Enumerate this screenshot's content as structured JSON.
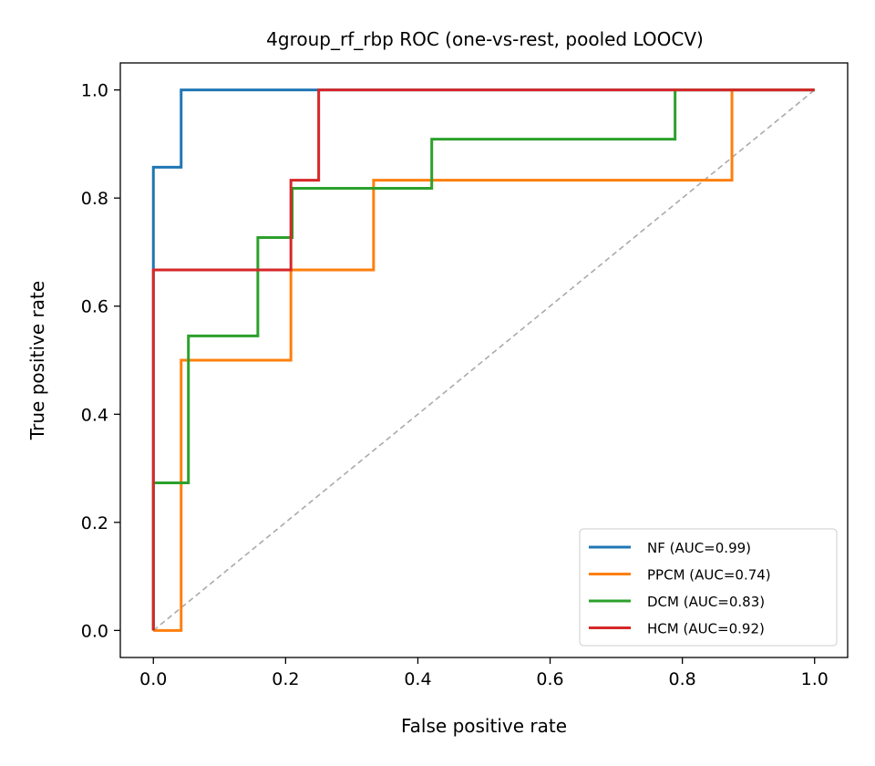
{
  "chart_data": {
    "type": "line",
    "title": "4group_rf_rbp ROC (one-vs-rest, pooled LOOCV)",
    "xlabel": "False positive rate",
    "ylabel": "True positive rate",
    "xlim": [
      -0.05,
      1.05
    ],
    "ylim": [
      -0.05,
      1.05
    ],
    "xticks": [
      0.0,
      0.2,
      0.4,
      0.6,
      0.8,
      1.0
    ],
    "yticks": [
      0.0,
      0.2,
      0.4,
      0.6,
      0.8,
      1.0
    ],
    "xtick_labels": [
      "0.0",
      "0.2",
      "0.4",
      "0.6",
      "0.8",
      "1.0"
    ],
    "ytick_labels": [
      "0.0",
      "0.2",
      "0.4",
      "0.6",
      "0.8",
      "1.0"
    ],
    "grid": false,
    "legend_position": "bottom-right",
    "reference_line": {
      "x": [
        0,
        1
      ],
      "y": [
        0,
        1
      ],
      "color": "#aaaaaa",
      "style": "dashed"
    },
    "series": [
      {
        "name": "NF (AUC=0.99)",
        "color": "#1f77b4",
        "x": [
          0,
          0,
          0,
          0.042,
          0.042,
          1.0
        ],
        "y": [
          0,
          0.667,
          0.857,
          0.857,
          1.0,
          1.0
        ]
      },
      {
        "name": "PPCM (AUC=0.74)",
        "color": "#ff7f0e",
        "x": [
          0,
          0.042,
          0.042,
          0.208,
          0.208,
          0.333,
          0.333,
          0.875,
          0.875,
          1.0
        ],
        "y": [
          0,
          0,
          0.5,
          0.5,
          0.667,
          0.667,
          0.833,
          0.833,
          1.0,
          1.0
        ]
      },
      {
        "name": "DCM (AUC=0.83)",
        "color": "#2ca02c",
        "x": [
          0,
          0,
          0.053,
          0.053,
          0.158,
          0.158,
          0.21,
          0.21,
          0.421,
          0.421,
          0.789,
          0.789,
          1.0
        ],
        "y": [
          0,
          0.273,
          0.273,
          0.545,
          0.545,
          0.727,
          0.727,
          0.818,
          0.818,
          0.909,
          0.909,
          1.0,
          1.0
        ]
      },
      {
        "name": "HCM (AUC=0.92)",
        "color": "#d62728",
        "x": [
          0,
          0,
          0.208,
          0.208,
          0.25,
          0.25,
          1.0
        ],
        "y": [
          0,
          0.667,
          0.667,
          0.833,
          0.833,
          1.0,
          1.0
        ]
      }
    ]
  }
}
